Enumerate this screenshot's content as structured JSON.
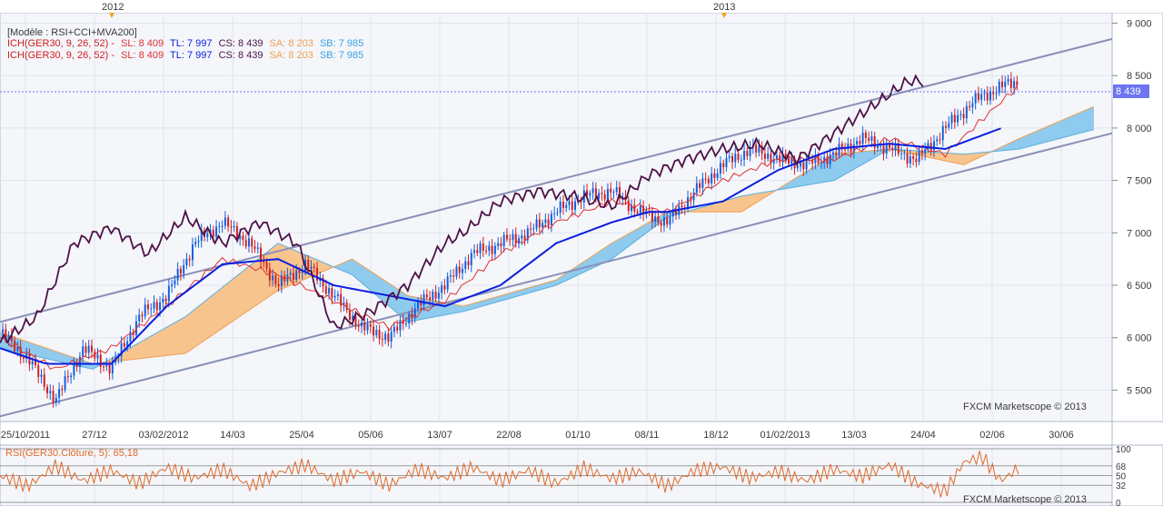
{
  "header": {
    "model_label": "[Modèle : RSI+CCI+MVA200]",
    "ich_line_1": {
      "name": "ICH(GER30, 9, 26, 52) -",
      "sl": "SL: 8 409",
      "tl": "TL: 7 997",
      "cs": "CS: 8 439",
      "sa": "SA: 8 203",
      "sb": "SB: 7 985"
    },
    "ich_line_2": {
      "name": "ICH(GER30, 9, 26, 52) -",
      "sl": "SL: 8 409",
      "tl": "TL: 7 997",
      "cs": "CS: 8 439",
      "sa": "SA: 8 203",
      "sb": "SB: 7 985"
    }
  },
  "watermark": "FXCM Marketscope © 2013",
  "year_markers": [
    "2012",
    "2013"
  ],
  "price_badge": "8 439",
  "colors": {
    "plot_bg": "#f4f6fa",
    "grid": "#dfe4ee",
    "axis_text": "#3a3a3a",
    "channel": "#8a90b8",
    "cloud_bull": "#8fcbee",
    "cloud_bear": "#f8c48e",
    "tenkan": "#e03030",
    "kijun": "#0a1ee0",
    "chikou": "#4e1246",
    "rsi": "#e06b2a",
    "badge": "#6c74f0",
    "year_marker": "#f0a020"
  },
  "chart_data": [
    {
      "type": "candlestick",
      "title": "",
      "instrument": "GER30",
      "indicator": "ICH(GER30, 9, 26, 52)",
      "x_ticks": [
        "25/10/2011",
        "27/12",
        "03/02/2012",
        "14/03",
        "25/04",
        "05/06",
        "13/07",
        "22/08",
        "01/10",
        "08/11",
        "18/12",
        "01/02/2013",
        "13/03",
        "24/04",
        "02/06",
        "30/06"
      ],
      "y_ticks": [
        "9 000",
        "8 500",
        "8 000",
        "7 500",
        "7 000",
        "6 500",
        "6 000",
        "5 500"
      ],
      "ylim": [
        5200,
        9100
      ],
      "last_price": 8439,
      "grid": true,
      "close_path": [
        [
          0,
          6050
        ],
        [
          3,
          5800
        ],
        [
          6,
          5400
        ],
        [
          9,
          5900
        ],
        [
          12,
          5700
        ],
        [
          15,
          6200
        ],
        [
          18,
          6400
        ],
        [
          21,
          6900
        ],
        [
          24,
          7100
        ],
        [
          27,
          6900
        ],
        [
          30,
          6500
        ],
        [
          33,
          6700
        ],
        [
          36,
          6400
        ],
        [
          39,
          6100
        ],
        [
          42,
          6000
        ],
        [
          45,
          6300
        ],
        [
          48,
          6500
        ],
        [
          51,
          6800
        ],
        [
          54,
          6900
        ],
        [
          57,
          7000
        ],
        [
          60,
          7200
        ],
        [
          63,
          7350
        ],
        [
          66,
          7400
        ],
        [
          69,
          7200
        ],
        [
          72,
          7100
        ],
        [
          75,
          7400
        ],
        [
          78,
          7650
        ],
        [
          81,
          7800
        ],
        [
          84,
          7700
        ],
        [
          87,
          7650
        ],
        [
          90,
          7750
        ],
        [
          93,
          7900
        ],
        [
          96,
          7800
        ],
        [
          99,
          7700
        ],
        [
          102,
          8000
        ],
        [
          105,
          8250
        ],
        [
          108,
          8400
        ],
        [
          110,
          8439
        ]
      ],
      "series": [
        {
          "name": "SL",
          "color": "#e03030",
          "points": [
            [
              0,
              6000
            ],
            [
              6,
              5700
            ],
            [
              12,
              5900
            ],
            [
              18,
              6300
            ],
            [
              24,
              6750
            ],
            [
              30,
              6600
            ],
            [
              36,
              6350
            ],
            [
              42,
              6100
            ],
            [
              48,
              6350
            ],
            [
              54,
              6800
            ],
            [
              60,
              7100
            ],
            [
              66,
              7300
            ],
            [
              72,
              7200
            ],
            [
              78,
              7500
            ],
            [
              84,
              7700
            ],
            [
              90,
              7700
            ],
            [
              96,
              7900
            ],
            [
              102,
              7750
            ],
            [
              108,
              8250
            ],
            [
              110,
              8409
            ]
          ]
        },
        {
          "name": "TL",
          "color": "#0a1ee0",
          "points": [
            [
              0,
              5900
            ],
            [
              5,
              5750
            ],
            [
              12,
              5750
            ],
            [
              18,
              6300
            ],
            [
              24,
              6700
            ],
            [
              30,
              6750
            ],
            [
              36,
              6500
            ],
            [
              42,
              6400
            ],
            [
              48,
              6300
            ],
            [
              54,
              6500
            ],
            [
              60,
              6900
            ],
            [
              66,
              7100
            ],
            [
              70,
              7200
            ],
            [
              72,
              7200
            ],
            [
              78,
              7300
            ],
            [
              84,
              7600
            ],
            [
              90,
              7800
            ],
            [
              96,
              7850
            ],
            [
              102,
              7800
            ],
            [
              108,
              7997
            ]
          ]
        },
        {
          "name": "CS",
          "color": "#4e1246",
          "points": [
            [
              0,
              5950
            ],
            [
              4,
              6200
            ],
            [
              8,
              6900
            ],
            [
              12,
              7050
            ],
            [
              16,
              6800
            ],
            [
              20,
              7150
            ],
            [
              24,
              6900
            ],
            [
              28,
              7100
            ],
            [
              32,
              6900
            ],
            [
              36,
              6100
            ],
            [
              40,
              6250
            ],
            [
              44,
              6500
            ],
            [
              48,
              6900
            ],
            [
              50,
              7000
            ],
            [
              54,
              7300
            ],
            [
              58,
              7400
            ],
            [
              62,
              7350
            ],
            [
              66,
              7250
            ],
            [
              70,
              7550
            ],
            [
              74,
              7700
            ],
            [
              78,
              7800
            ],
            [
              82,
              7850
            ],
            [
              86,
              7700
            ],
            [
              90,
              7950
            ],
            [
              94,
              8200
            ],
            [
              98,
              8450
            ],
            [
              100,
              8439
            ]
          ]
        },
        {
          "name": "SA",
          "color": "#f0a050",
          "points": [
            [
              0,
              6050
            ],
            [
              10,
              5750
            ],
            [
              20,
              5850
            ],
            [
              30,
              6450
            ],
            [
              38,
              6750
            ],
            [
              44,
              6400
            ],
            [
              50,
              6300
            ],
            [
              60,
              6550
            ],
            [
              66,
              6900
            ],
            [
              72,
              7200
            ],
            [
              80,
              7200
            ],
            [
              90,
              7750
            ],
            [
              96,
              7800
            ],
            [
              104,
              7650
            ],
            [
              110,
              7900
            ],
            [
              118,
              8203
            ]
          ]
        },
        {
          "name": "SB",
          "color": "#5ab0e0",
          "points": [
            [
              0,
              5900
            ],
            [
              10,
              5700
            ],
            [
              20,
              6200
            ],
            [
              30,
              6900
            ],
            [
              38,
              6600
            ],
            [
              44,
              6150
            ],
            [
              50,
              6250
            ],
            [
              60,
              6500
            ],
            [
              66,
              6750
            ],
            [
              72,
              7150
            ],
            [
              80,
              7350
            ],
            [
              90,
              7500
            ],
            [
              96,
              7800
            ],
            [
              104,
              7750
            ],
            [
              110,
              7800
            ],
            [
              118,
              7985
            ]
          ]
        }
      ],
      "channel_lines": [
        {
          "name": "upper",
          "start": [
            0,
            6150
          ],
          "end": [
            120,
            8850
          ]
        },
        {
          "name": "lower",
          "start": [
            0,
            5250
          ],
          "end": [
            120,
            7950
          ]
        }
      ]
    },
    {
      "type": "line",
      "title": "RSI(GER30.Clôture, 5): 65,18",
      "y_ticks": [
        "100",
        "68",
        "50",
        "32",
        "0"
      ],
      "ylim": [
        0,
        100
      ],
      "grid": true,
      "series": [
        {
          "name": "RSI(GER30.Clôture, 5)",
          "color": "#e06b2a",
          "points": [
            [
              0,
              50
            ],
            [
              3,
              30
            ],
            [
              6,
              68
            ],
            [
              9,
              40
            ],
            [
              12,
              60
            ],
            [
              15,
              35
            ],
            [
              18,
              65
            ],
            [
              21,
              45
            ],
            [
              24,
              62
            ],
            [
              27,
              30
            ],
            [
              30,
              55
            ],
            [
              33,
              70
            ],
            [
              36,
              40
            ],
            [
              39,
              58
            ],
            [
              42,
              32
            ],
            [
              45,
              62
            ],
            [
              48,
              45
            ],
            [
              51,
              66
            ],
            [
              54,
              40
            ],
            [
              57,
              60
            ],
            [
              60,
              35
            ],
            [
              63,
              64
            ],
            [
              66,
              44
            ],
            [
              69,
              58
            ],
            [
              72,
              30
            ],
            [
              75,
              60
            ],
            [
              78,
              66
            ],
            [
              81,
              45
            ],
            [
              84,
              58
            ],
            [
              87,
              40
            ],
            [
              90,
              62
            ],
            [
              93,
              48
            ],
            [
              96,
              70
            ],
            [
              99,
              35
            ],
            [
              102,
              20
            ],
            [
              104,
              75
            ],
            [
              106,
              85
            ],
            [
              108,
              40
            ],
            [
              110,
              65.18
            ]
          ]
        }
      ]
    }
  ]
}
